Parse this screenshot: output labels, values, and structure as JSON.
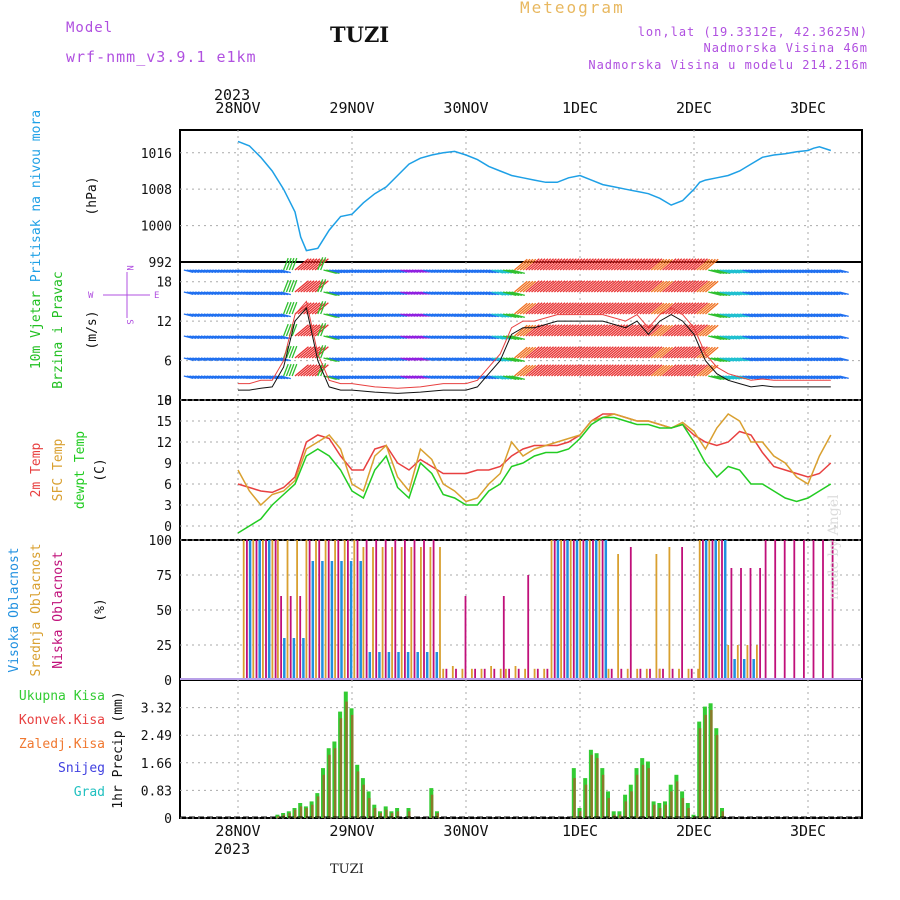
{
  "header": {
    "model_label": "Model",
    "model_name": "wrf-nmm_v3.9.1  e1km",
    "station": "TUZI",
    "meteogram_title": "Meteogram",
    "lonlat": "lon,lat (19.3312E, 42.3625N)",
    "altitude": "Nadmorska Visina 46m",
    "model_altitude": "Nadmorska Visina u modelu 214.216m"
  },
  "footer": {
    "station": "TUZI",
    "watermark": "made by Angel"
  },
  "time_axis": {
    "year_top": "2023",
    "year_bottom": "2023",
    "dates": [
      "28NOV",
      "29NOV",
      "30NOV",
      "1DEC",
      "2DEC",
      "3DEC"
    ]
  },
  "colors": {
    "pressure": "#1ea0e6",
    "temp2m": "#e84040",
    "sfc_temp": "#d9a030",
    "dewpt": "#22cc22",
    "high_cloud": "#2090e0",
    "mid_cloud": "#d9a030",
    "low_cloud": "#c0107a",
    "total_precip": "#33cc33",
    "conv_precip": "#e84040",
    "frozen_precip": "#f07830",
    "snow": "#4040e0",
    "hail": "#20c0c0",
    "model_text": "#b050e0",
    "meteogram_text": "#e8b860",
    "wind_text": "#22c022"
  },
  "chart_data": [
    {
      "type": "line",
      "title": "Pritisak na nivou mora",
      "ylabel": "(hPa)",
      "ylim": [
        992,
        1021
      ],
      "yticks": [
        992,
        1000,
        1008,
        1016
      ],
      "x_days": [
        0,
        0.1,
        0.2,
        0.3,
        0.4,
        0.5,
        0.55,
        0.6,
        0.7,
        0.8,
        0.9,
        1.0,
        1.1,
        1.2,
        1.3,
        1.4,
        1.5,
        1.6,
        1.7,
        1.8,
        1.9,
        2.0,
        2.1,
        2.2,
        2.3,
        2.4,
        2.5,
        2.6,
        2.7,
        2.8,
        2.9,
        3.0,
        3.1,
        3.2,
        3.3,
        3.4,
        3.5,
        3.6,
        3.7,
        3.8,
        3.9,
        4.0,
        4.05,
        4.1,
        4.2,
        4.3,
        4.4,
        4.5,
        4.6,
        4.7,
        4.8,
        4.9,
        5.0,
        5.05,
        5.1,
        5.2
      ],
      "series": [
        {
          "values": [
            1018.5,
            1017.5,
            1015,
            1012,
            1008,
            1003,
            997.5,
            994.5,
            995,
            999,
            1002,
            1002.5,
            1005,
            1007,
            1008.5,
            1011,
            1013.5,
            1014.8,
            1015.5,
            1016,
            1016.3,
            1015.5,
            1014.5,
            1013,
            1012,
            1011,
            1010.5,
            1010,
            1009.5,
            1009.5,
            1010.5,
            1011,
            1010,
            1009,
            1008.5,
            1008,
            1007.5,
            1007,
            1006,
            1004.5,
            1005.5,
            1008,
            1009.5,
            1010,
            1010.5,
            1011,
            1012,
            1013.5,
            1015,
            1015.5,
            1015.8,
            1016.2,
            1016.5,
            1017,
            1017.3,
            1016.5
          ]
        }
      ]
    },
    {
      "type": "line",
      "title": "10m Vjetar Brzina i Pravac",
      "ylabel": "(m/s)",
      "ylim": [
        0,
        21
      ],
      "yticks": [
        0,
        6,
        12,
        18
      ],
      "legend_labels": [
        "N",
        "W",
        "E",
        "S"
      ],
      "x_days": [
        0,
        0.1,
        0.2,
        0.3,
        0.4,
        0.5,
        0.6,
        0.7,
        0.8,
        0.9,
        1.0,
        1.2,
        1.4,
        1.6,
        1.8,
        2.0,
        2.1,
        2.2,
        2.3,
        2.4,
        2.5,
        2.6,
        2.8,
        3.0,
        3.2,
        3.4,
        3.5,
        3.6,
        3.7,
        3.8,
        3.9,
        4.0,
        4.1,
        4.2,
        4.3,
        4.4,
        4.5,
        4.6,
        4.7,
        4.8,
        5.0,
        5.2
      ],
      "series": [
        {
          "values": [
            1.5,
            1.5,
            1.8,
            2,
            5,
            12,
            14,
            6,
            2,
            1.5,
            1.5,
            1.2,
            1,
            1.2,
            1.5,
            1.5,
            2,
            4,
            6,
            10,
            11,
            11,
            12,
            12,
            12,
            11,
            12,
            10,
            12,
            13,
            12,
            10,
            6,
            4,
            3,
            2.5,
            2,
            2.2,
            2,
            2,
            2,
            2
          ]
        },
        {
          "values": [
            2.5,
            2.5,
            3,
            3,
            6,
            13,
            15,
            7,
            3,
            2.5,
            2.5,
            2,
            1.8,
            2,
            2.5,
            2.5,
            3,
            5,
            7,
            11,
            12,
            12,
            13,
            13,
            13,
            12,
            13,
            11,
            13,
            14,
            13,
            11,
            7,
            5,
            4,
            3.5,
            3,
            3.2,
            3,
            3,
            3,
            3
          ]
        }
      ]
    },
    {
      "type": "line",
      "title": "2m Temp / SFC Temp / dewpt Temp",
      "ylabel": "(C)",
      "ylim": [
        -2,
        18
      ],
      "yticks": [
        0,
        3,
        6,
        9,
        12,
        15,
        18
      ],
      "x_days": [
        0,
        0.1,
        0.2,
        0.3,
        0.4,
        0.5,
        0.6,
        0.7,
        0.8,
        0.9,
        1.0,
        1.1,
        1.2,
        1.3,
        1.4,
        1.5,
        1.6,
        1.7,
        1.8,
        1.9,
        2.0,
        2.1,
        2.2,
        2.3,
        2.4,
        2.5,
        2.6,
        2.7,
        2.8,
        2.9,
        3.0,
        3.1,
        3.2,
        3.3,
        3.4,
        3.5,
        3.6,
        3.7,
        3.8,
        3.9,
        4.0,
        4.1,
        4.2,
        4.3,
        4.4,
        4.5,
        4.6,
        4.7,
        4.8,
        4.9,
        5.0,
        5.1,
        5.2
      ],
      "series": [
        {
          "name": "2m Temp",
          "values": [
            6,
            5.5,
            5,
            4.8,
            5.5,
            7,
            12,
            13,
            12.5,
            10,
            8,
            8,
            11,
            11.5,
            9,
            8,
            9.5,
            8.5,
            7.5,
            7.5,
            7.5,
            8,
            8,
            8.5,
            10,
            11,
            11.5,
            11.5,
            11.5,
            12,
            13,
            15,
            16,
            16,
            15.5,
            15,
            15,
            14.5,
            14,
            14.5,
            13,
            12,
            11.5,
            12,
            13.5,
            13,
            10.5,
            8.5,
            8,
            7.5,
            7,
            7.5,
            9
          ]
        },
        {
          "name": "SFC Temp",
          "values": [
            8,
            5,
            3,
            4.5,
            5,
            6.5,
            11,
            12,
            13,
            11,
            6,
            5,
            10,
            11.5,
            7,
            5,
            11,
            9.5,
            6,
            5,
            3.5,
            4,
            6,
            7.5,
            12,
            10,
            11,
            11.5,
            12,
            12.5,
            13,
            15,
            15.5,
            16,
            15.5,
            15,
            15,
            14.5,
            14,
            14.8,
            13.5,
            11,
            14,
            16,
            15,
            12,
            12,
            10,
            9,
            7,
            6,
            10,
            13
          ]
        },
        {
          "name": "dewpt Temp",
          "values": [
            -1,
            0,
            1,
            3,
            4.5,
            6,
            10,
            11,
            10,
            8,
            5,
            4,
            8,
            10,
            5.5,
            4,
            9,
            7.5,
            4.5,
            4,
            3,
            3,
            5,
            6,
            8.5,
            9,
            10,
            10.5,
            10.5,
            11,
            12.5,
            14.5,
            15.5,
            15.5,
            15,
            14.5,
            14.5,
            14,
            14,
            14.5,
            12,
            9,
            7,
            8.5,
            8,
            6,
            6,
            5,
            4,
            3.5,
            4,
            5,
            6
          ]
        }
      ]
    },
    {
      "type": "bar",
      "title": "Visoka Oblacnost / Srednja Oblacnost / Niska Oblacnost",
      "ylabel": "(%)",
      "ylim": [
        0,
        100
      ],
      "yticks": [
        0,
        25,
        50,
        75,
        100
      ],
      "cloud_periods_days": [
        [
          0.05,
          0.35
        ],
        [
          0.35,
          0.6
        ],
        [
          0.6,
          1.1
        ],
        [
          1.1,
          1.8
        ],
        [
          1.8,
          2.35
        ],
        [
          2.35,
          2.75
        ],
        [
          2.75,
          3.25
        ],
        [
          3.25,
          3.7
        ],
        [
          3.7,
          4.05
        ],
        [
          4.05,
          4.3
        ],
        [
          4.3,
          4.6
        ],
        [
          4.6,
          5.25
        ]
      ],
      "series": [
        {
          "name": "Visoka Oblacnost",
          "period_values": [
            100,
            30,
            85,
            20,
            0,
            0,
            100,
            0,
            0,
            100,
            15,
            0
          ]
        },
        {
          "name": "Srednja Oblacnost",
          "period_values": [
            100,
            100,
            100,
            95,
            10,
            10,
            100,
            90,
            95,
            100,
            25,
            0
          ]
        },
        {
          "name": "Niska Oblacnost",
          "period_values": [
            100,
            60,
            100,
            100,
            60,
            75,
            100,
            95,
            95,
            100,
            80,
            100
          ]
        }
      ]
    },
    {
      "type": "bar",
      "title": "Ukupna Kisa / Konvek.Kisa / Zaledj.Kisa / Snijeg / Grad",
      "ylabel": "1hr Precip (mm)",
      "ylim": [
        0,
        4.15
      ],
      "yticks": [
        0,
        0.83,
        1.66,
        2.49,
        3.32
      ],
      "x_days": [
        0.35,
        0.4,
        0.45,
        0.5,
        0.55,
        0.6,
        0.65,
        0.7,
        0.75,
        0.8,
        0.85,
        0.9,
        0.95,
        1.0,
        1.05,
        1.1,
        1.15,
        1.2,
        1.25,
        1.3,
        1.35,
        1.4,
        1.5,
        1.7,
        1.75,
        2.95,
        3.0,
        3.05,
        3.1,
        3.15,
        3.2,
        3.25,
        3.3,
        3.35,
        3.4,
        3.45,
        3.5,
        3.55,
        3.6,
        3.65,
        3.7,
        3.75,
        3.8,
        3.85,
        3.9,
        3.95,
        4.0,
        4.05,
        4.1,
        4.15,
        4.2,
        4.25
      ],
      "series": [
        {
          "name": "Ukupna Kisa",
          "values": [
            0.1,
            0.15,
            0.2,
            0.3,
            0.45,
            0.35,
            0.5,
            0.75,
            1.5,
            2.1,
            2.3,
            3.2,
            3.8,
            3.3,
            1.6,
            1.2,
            0.8,
            0.4,
            0.2,
            0.35,
            0.2,
            0.3,
            0.3,
            0.9,
            0.2,
            1.5,
            0.3,
            1.2,
            2.05,
            1.95,
            1.5,
            0.8,
            0.2,
            0.2,
            0.7,
            1.0,
            1.5,
            1.8,
            1.7,
            0.5,
            0.45,
            0.5,
            1.0,
            1.3,
            0.8,
            0.45,
            0.1,
            2.9,
            3.35,
            3.45,
            2.7,
            0.3
          ]
        },
        {
          "name": "Konvek.Kisa",
          "values": [
            0.05,
            0.1,
            0.15,
            0.25,
            0.35,
            0.3,
            0.4,
            0.65,
            1.3,
            1.9,
            2.1,
            3.0,
            3.5,
            3.1,
            1.4,
            1.0,
            0.6,
            0.3,
            0.15,
            0.25,
            0.15,
            0.2,
            0.2,
            0.7,
            0.15,
            1.2,
            0.2,
            1.0,
            1.9,
            1.8,
            1.3,
            0.6,
            0.1,
            0.1,
            0.5,
            0.8,
            1.3,
            1.6,
            1.5,
            0.4,
            0.3,
            0.4,
            0.8,
            1.1,
            0.6,
            0.3,
            0.05,
            2.7,
            3.1,
            3.25,
            2.5,
            0.2
          ]
        }
      ]
    }
  ]
}
